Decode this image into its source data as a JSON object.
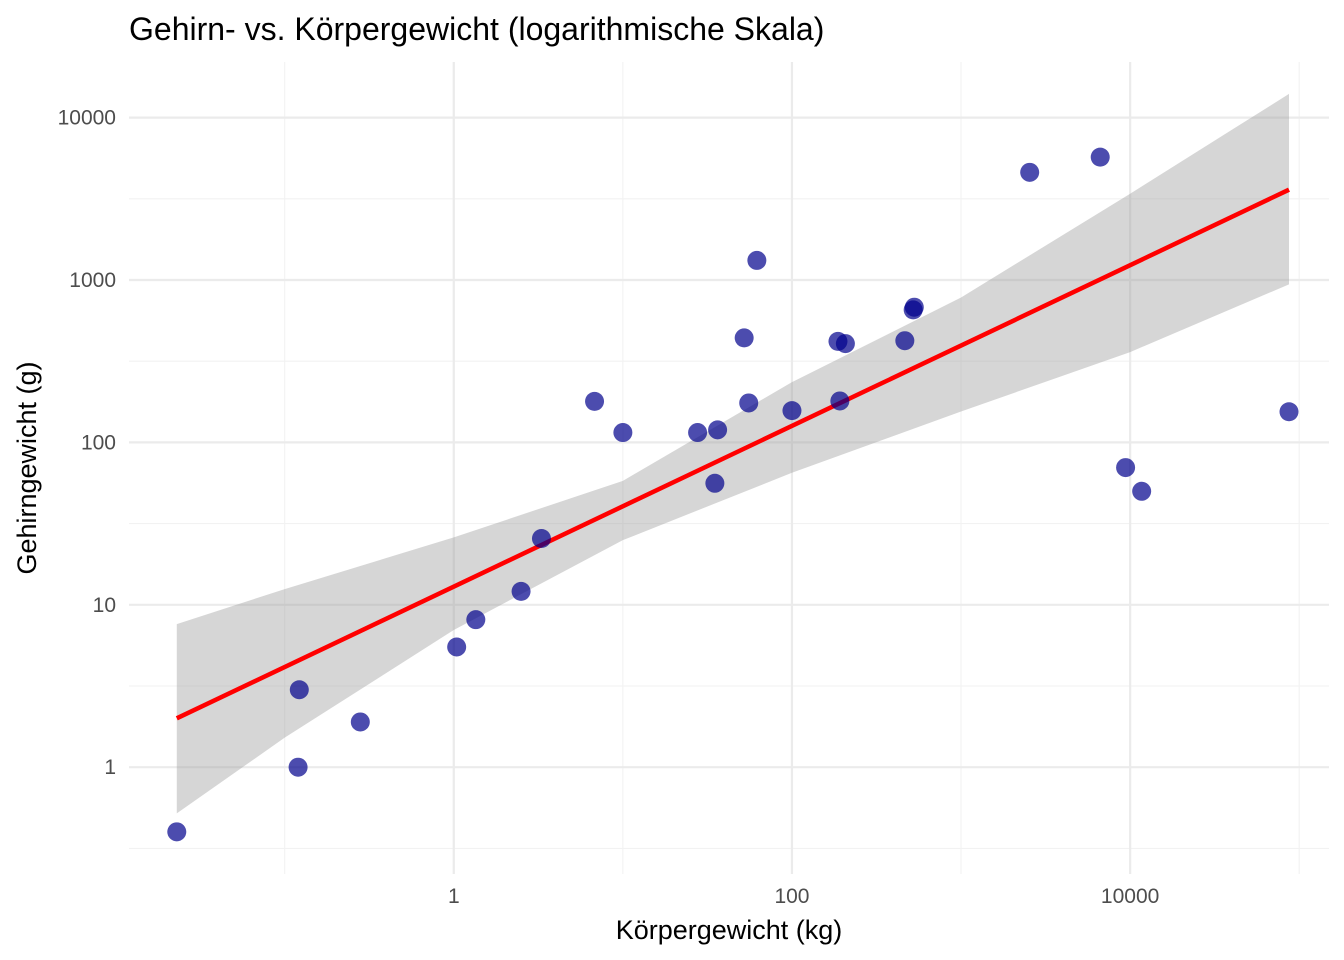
{
  "chart_data": {
    "type": "scatter",
    "title": "Gehirn- vs. Körpergewicht (logarithmische Skala)",
    "xlabel": "Körpergewicht (kg)",
    "ylabel": "Gehirngewicht (g)",
    "x_scale": "log10",
    "y_scale": "log10",
    "xlim": [
      0.012,
      150000
    ],
    "ylim": [
      0.22,
      22000
    ],
    "x_ticks": [
      1,
      100,
      10000
    ],
    "x_tick_labels": [
      "1",
      "100",
      "10000"
    ],
    "y_ticks": [
      1,
      10,
      100,
      1000,
      10000
    ],
    "y_tick_labels": [
      "1",
      "10",
      "100",
      "1000",
      "10000"
    ],
    "point_color": "#00008b",
    "point_opacity": 0.7,
    "fit_color": "#ff0000",
    "band_color": "#999999",
    "band_opacity": 0.4,
    "points": [
      {
        "x": 0.023,
        "y": 0.4
      },
      {
        "x": 0.12,
        "y": 1.0
      },
      {
        "x": 0.122,
        "y": 3.0
      },
      {
        "x": 0.28,
        "y": 1.9
      },
      {
        "x": 1.04,
        "y": 5.5
      },
      {
        "x": 1.35,
        "y": 8.1
      },
      {
        "x": 2.5,
        "y": 12.1
      },
      {
        "x": 3.3,
        "y": 25.6
      },
      {
        "x": 6.8,
        "y": 179
      },
      {
        "x": 10.0,
        "y": 115
      },
      {
        "x": 27.66,
        "y": 115
      },
      {
        "x": 35.0,
        "y": 56
      },
      {
        "x": 36.33,
        "y": 119.5
      },
      {
        "x": 52.16,
        "y": 440
      },
      {
        "x": 55.5,
        "y": 175
      },
      {
        "x": 62.0,
        "y": 1320
      },
      {
        "x": 100.0,
        "y": 157
      },
      {
        "x": 187.1,
        "y": 419
      },
      {
        "x": 192.0,
        "y": 180
      },
      {
        "x": 207.0,
        "y": 406
      },
      {
        "x": 465.0,
        "y": 423
      },
      {
        "x": 521.0,
        "y": 655
      },
      {
        "x": 529.0,
        "y": 680
      },
      {
        "x": 2547.0,
        "y": 4603
      },
      {
        "x": 6654.0,
        "y": 5712
      },
      {
        "x": 9400.0,
        "y": 70
      },
      {
        "x": 11700.0,
        "y": 50
      },
      {
        "x": 87000.0,
        "y": 154.5
      }
    ],
    "fit_line": {
      "x": [
        0.023,
        87000
      ],
      "y": [
        2.0,
        3600
      ]
    },
    "confidence_band": {
      "x": [
        0.023,
        0.1,
        1,
        10,
        100,
        1000,
        10000,
        87000
      ],
      "lower": [
        0.52,
        1.52,
        7.0,
        25.0,
        65.0,
        155.0,
        360.0,
        940.0
      ],
      "upper": [
        7.6,
        12.5,
        26.0,
        58.0,
        235.0,
        780.0,
        3400.0,
        14000.0
      ]
    }
  }
}
